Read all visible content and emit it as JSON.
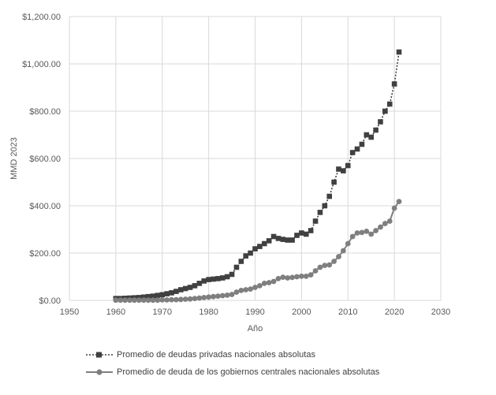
{
  "chart_data": {
    "type": "scatter",
    "xlabel": "Año",
    "ylabel": "MMD 2023",
    "xlim": [
      1950,
      2030
    ],
    "ylim": [
      0,
      1200
    ],
    "x_ticks": [
      "1950",
      "1960",
      "1970",
      "1980",
      "1990",
      "2000",
      "2010",
      "2020",
      "2030"
    ],
    "y_ticks": [
      "$0.00",
      "$200.00",
      "$400.00",
      "$600.00",
      "$800.00",
      "$1,000.00",
      "$1,200.00"
    ],
    "grid": true,
    "legend_position": "bottom",
    "series": [
      {
        "name": "Promedio de deudas privadas nacionales absolutas",
        "color": "#404040",
        "marker": "square",
        "line": "dotted",
        "x": [
          1960,
          1961,
          1962,
          1963,
          1964,
          1965,
          1966,
          1967,
          1968,
          1969,
          1970,
          1971,
          1972,
          1973,
          1974,
          1975,
          1976,
          1977,
          1978,
          1979,
          1980,
          1981,
          1982,
          1983,
          1984,
          1985,
          1986,
          1987,
          1988,
          1989,
          1990,
          1991,
          1992,
          1993,
          1994,
          1995,
          1996,
          1997,
          1998,
          1999,
          2000,
          2001,
          2002,
          2003,
          2004,
          2005,
          2006,
          2007,
          2008,
          2009,
          2010,
          2011,
          2012,
          2013,
          2014,
          2015,
          2016,
          2017,
          2018,
          2019,
          2020,
          2021
        ],
        "y": [
          8,
          8,
          9,
          10,
          11,
          12,
          14,
          16,
          18,
          21,
          24,
          28,
          32,
          38,
          45,
          50,
          55,
          62,
          72,
          82,
          88,
          90,
          92,
          95,
          100,
          110,
          140,
          165,
          188,
          200,
          218,
          228,
          240,
          252,
          270,
          262,
          258,
          255,
          255,
          275,
          285,
          280,
          295,
          335,
          372,
          400,
          440,
          500,
          555,
          548,
          570,
          625,
          640,
          660,
          700,
          690,
          720,
          755,
          800,
          830,
          915,
          1050
        ]
      },
      {
        "name": "Promedio de deuda de los gobiernos centrales nacionales absolutas",
        "color": "#7f7f7f",
        "marker": "circle",
        "line": "solid",
        "x": [
          1960,
          1961,
          1962,
          1963,
          1964,
          1965,
          1966,
          1967,
          1968,
          1969,
          1970,
          1971,
          1972,
          1973,
          1974,
          1975,
          1976,
          1977,
          1978,
          1979,
          1980,
          1981,
          1982,
          1983,
          1984,
          1985,
          1986,
          1987,
          1988,
          1989,
          1990,
          1991,
          1992,
          1993,
          1994,
          1995,
          1996,
          1997,
          1998,
          1999,
          2000,
          2001,
          2002,
          2003,
          2004,
          2005,
          2006,
          2007,
          2008,
          2009,
          2010,
          2011,
          2012,
          2013,
          2014,
          2015,
          2016,
          2017,
          2018,
          2019,
          2020,
          2021
        ],
        "y": [
          1,
          1,
          1,
          1,
          1,
          1,
          1,
          1,
          1,
          1,
          2,
          2,
          3,
          3,
          4,
          5,
          6,
          8,
          10,
          12,
          14,
          16,
          18,
          20,
          22,
          25,
          35,
          42,
          45,
          48,
          55,
          62,
          72,
          75,
          80,
          92,
          98,
          95,
          97,
          100,
          102,
          102,
          108,
          125,
          140,
          148,
          150,
          165,
          185,
          210,
          240,
          270,
          285,
          287,
          292,
          280,
          295,
          310,
          325,
          335,
          390,
          418
        ]
      }
    ]
  }
}
